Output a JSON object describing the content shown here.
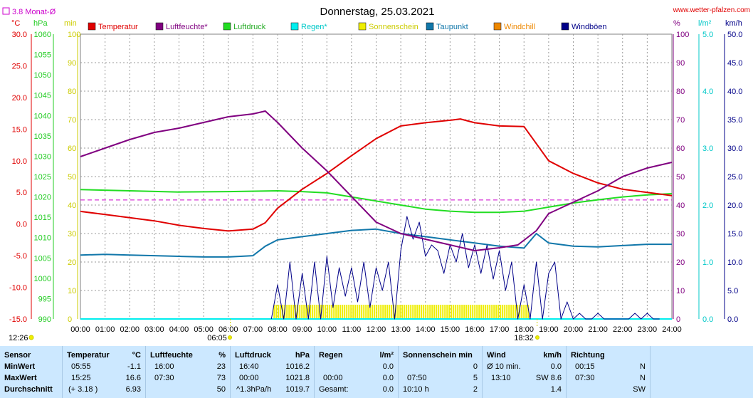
{
  "site": "www.wetter-pfalzen.com",
  "title": "Donnerstag, 25.03.2021",
  "monat_label": "3.8 Monat-Ø",
  "axis_units": {
    "temp": "°C",
    "hpa": "hPa",
    "min": "min",
    "pct": "%",
    "rain": "l/m²",
    "wind": "km/h"
  },
  "axis_ticks": {
    "temp": [
      "30.0",
      "25.0",
      "20.0",
      "15.0",
      "10.0",
      "5.0",
      "0.0",
      "-5.0",
      "-10.0",
      "-15.0"
    ],
    "hpa": [
      "1060",
      "1055",
      "1050",
      "1045",
      "1040",
      "1035",
      "1030",
      "1025",
      "1020",
      "1015",
      "1010",
      "1005",
      "1000",
      "995",
      "990"
    ],
    "min": [
      "100",
      "90",
      "80",
      "70",
      "60",
      "50",
      "40",
      "30",
      "20",
      "10",
      "0"
    ],
    "pct": [
      "100",
      "90",
      "80",
      "70",
      "60",
      "50",
      "40",
      "30",
      "20",
      "10",
      "0"
    ],
    "rain": [
      "5.0",
      "4.0",
      "3.0",
      "2.0",
      "1.0",
      "0.0"
    ],
    "wind": [
      "50.0",
      "45.0",
      "40.0",
      "35.0",
      "30.0",
      "25.0",
      "20.0",
      "15.0",
      "10.0",
      "5.0",
      "0.0"
    ],
    "time": [
      "00:00",
      "01:00",
      "02:00",
      "03:00",
      "04:00",
      "05:00",
      "06:00",
      "07:00",
      "08:00",
      "09:00",
      "10:00",
      "11:00",
      "12:00",
      "13:00",
      "14:00",
      "15:00",
      "16:00",
      "17:00",
      "18:00",
      "19:00",
      "20:00",
      "21:00",
      "22:00",
      "23:00",
      "24:00"
    ]
  },
  "markers": {
    "sunrise": "06:05",
    "sunset": "18:32",
    "daylength": "12:26"
  },
  "colors": {
    "temperatur": "#e00000",
    "luftfeuchte": "#800080",
    "luftdruck": "#22dd22",
    "regen": "#00eeee",
    "sonnenschein": "#eeee00",
    "taupunkt": "#1177aa",
    "windchill": "#ee8800",
    "windboeen": "#000088",
    "monat": "#cc00cc"
  },
  "chart_data": {
    "type": "line",
    "title": "Donnerstag, 25.03.2021",
    "x_range": [
      "00:00",
      "24:00"
    ],
    "grid": true,
    "legend_position": "top",
    "series": [
      {
        "name": "Temperatur",
        "axis": "°C",
        "ylim": [
          -15,
          30
        ],
        "x": [
          "00:00",
          "01:00",
          "02:00",
          "03:00",
          "04:00",
          "05:00",
          "06:00",
          "07:00",
          "07:30",
          "08:00",
          "09:00",
          "10:00",
          "11:00",
          "12:00",
          "13:00",
          "14:00",
          "15:00",
          "15:25",
          "16:00",
          "17:00",
          "18:00",
          "19:00",
          "20:00",
          "21:00",
          "22:00",
          "23:00",
          "24:00"
        ],
        "values": [
          2.0,
          1.5,
          1.0,
          0.5,
          -0.2,
          -0.7,
          -1.1,
          -0.8,
          0.2,
          2.5,
          5.5,
          8.0,
          10.8,
          13.5,
          15.5,
          16.0,
          16.4,
          16.6,
          16.0,
          15.5,
          15.4,
          10.0,
          8.0,
          6.5,
          5.5,
          5.0,
          4.5
        ]
      },
      {
        "name": "Luftfeuchte*",
        "axis": "%",
        "ylim": [
          0,
          100
        ],
        "x": [
          "00:00",
          "01:00",
          "02:00",
          "03:00",
          "04:00",
          "05:00",
          "06:00",
          "07:00",
          "07:30",
          "08:00",
          "09:00",
          "10:00",
          "11:00",
          "12:00",
          "13:00",
          "14:00",
          "15:00",
          "16:00",
          "17:00",
          "17:45",
          "18:30",
          "19:00",
          "20:00",
          "21:00",
          "22:00",
          "23:00",
          "24:00"
        ],
        "values": [
          57,
          60,
          63,
          65.5,
          67,
          69,
          71,
          72,
          73,
          69,
          60,
          52,
          43,
          34,
          30,
          28,
          26,
          24,
          25,
          26,
          31,
          37,
          41,
          45,
          50,
          53,
          55
        ]
      },
      {
        "name": "Luftdruck",
        "axis": "hPa",
        "ylim": [
          990,
          1060
        ],
        "x": [
          "00:00",
          "02:00",
          "04:00",
          "06:00",
          "08:00",
          "09:00",
          "10:00",
          "11:00",
          "12:00",
          "13:00",
          "14:00",
          "15:00",
          "16:00",
          "17:00",
          "18:00",
          "19:00",
          "20:00",
          "21:00",
          "22:00",
          "23:00",
          "24:00"
        ],
        "values": [
          1021.8,
          1021.5,
          1021.2,
          1021.3,
          1021.5,
          1021.3,
          1021.0,
          1020.0,
          1019.0,
          1018.0,
          1017.0,
          1016.5,
          1016.2,
          1016.2,
          1016.5,
          1017.5,
          1018.5,
          1019.3,
          1020.0,
          1020.5,
          1020.8
        ]
      },
      {
        "name": "Regen",
        "axis": "l/m²",
        "ylim": [
          0,
          5
        ],
        "x": [
          "00:00",
          "24:00"
        ],
        "values": [
          0.0,
          0.0
        ]
      },
      {
        "name": "Taupunkt",
        "axis": "°C",
        "ylim": [
          -15,
          30
        ],
        "x": [
          "00:00",
          "01:00",
          "02:00",
          "03:00",
          "04:00",
          "05:00",
          "06:00",
          "07:00",
          "07:30",
          "08:00",
          "09:00",
          "10:00",
          "11:00",
          "12:00",
          "13:00",
          "14:00",
          "15:00",
          "16:00",
          "17:00",
          "18:00",
          "18:30",
          "19:00",
          "20:00",
          "21:00",
          "22:00",
          "23:00",
          "24:00"
        ],
        "values": [
          -4.9,
          -4.8,
          -4.9,
          -5.0,
          -5.1,
          -5.2,
          -5.2,
          -5.0,
          -3.5,
          -2.5,
          -2.0,
          -1.5,
          -1.0,
          -0.8,
          -1.5,
          -2.0,
          -2.5,
          -3.0,
          -3.5,
          -3.8,
          -1.5,
          -3.0,
          -3.5,
          -3.6,
          -3.4,
          -3.2,
          -3.2
        ]
      },
      {
        "name": "Windböen",
        "axis": "km/h",
        "ylim": [
          0,
          50
        ],
        "x": [
          "07:45",
          "08:00",
          "08:15",
          "08:30",
          "08:45",
          "09:00",
          "09:15",
          "09:30",
          "09:45",
          "10:00",
          "10:15",
          "10:30",
          "10:45",
          "11:00",
          "11:15",
          "11:30",
          "11:45",
          "12:00",
          "12:15",
          "12:30",
          "12:45",
          "13:00",
          "13:15",
          "13:30",
          "13:45",
          "14:00",
          "14:15",
          "14:30",
          "14:45",
          "15:00",
          "15:15",
          "15:30",
          "15:45",
          "16:00",
          "16:15",
          "16:30",
          "16:45",
          "17:00",
          "17:15",
          "17:30",
          "17:45",
          "18:00",
          "18:15",
          "18:30",
          "18:45",
          "19:00",
          "19:15",
          "19:30",
          "19:45",
          "20:00",
          "20:15",
          "20:30",
          "20:45",
          "21:00",
          "21:15",
          "21:30",
          "21:45",
          "22:00",
          "22:15",
          "22:30",
          "22:45",
          "23:00",
          "23:15",
          "23:30"
        ],
        "values": [
          0,
          6,
          0,
          10,
          0,
          8,
          0,
          10,
          0,
          11,
          2,
          9,
          4,
          9,
          3,
          10,
          2,
          9,
          5,
          10,
          0,
          12,
          18,
          14,
          17,
          11,
          13,
          12,
          8,
          13,
          10,
          15,
          9,
          13,
          8,
          13,
          7,
          12,
          5,
          10,
          0,
          6,
          0,
          10,
          0,
          8,
          10,
          0,
          3,
          0,
          1,
          0,
          0,
          1,
          0,
          0,
          0,
          0,
          0,
          1,
          0,
          1,
          0,
          0
        ]
      },
      {
        "name": "Sonnenschein",
        "axis": "min",
        "ylim": [
          0,
          100
        ],
        "x": [
          "07:50",
          "18:10"
        ],
        "values": [
          5,
          5
        ]
      }
    ],
    "monat_mittel": {
      "label": "3.8 Monat-Ø",
      "axis": "°C",
      "value": 3.8
    }
  },
  "legend": [
    "Temperatur",
    "Luftfeuchte*",
    "Luftdruck",
    "Regen*",
    "Sonnenschein",
    "Taupunkt",
    "Windchill",
    "Windböen"
  ],
  "table": {
    "row_labels": [
      "Sensor",
      "MinWert",
      "MaxWert",
      "Durchschnitt"
    ],
    "temperatur": {
      "title": "Temperatur",
      "unit": "°C",
      "min_time": "05:55",
      "min": "-1.1",
      "max_time": "15:25",
      "max": "16.6",
      "avg_note": "(+ 3.18 )",
      "avg": "6.93"
    },
    "luftfeuchte": {
      "title": "Luftfeuchte",
      "unit": "%",
      "min_time": "16:00",
      "min": "23",
      "max_time": "07:30",
      "max": "73",
      "avg": "50"
    },
    "luftdruck": {
      "title": "Luftdruck",
      "unit": "hPa",
      "min_time": "16:40",
      "min": "1016.2",
      "max_time": "00:00",
      "max": "1021.8",
      "avg_note": "^1.3hPa/h",
      "avg": "1019.7"
    },
    "regen": {
      "title": "Regen",
      "unit": "l/m²",
      "min": "0.0",
      "max_time": "00:00",
      "max": "0.0",
      "avg_note": "Gesamt:",
      "avg": "0.0"
    },
    "sonne": {
      "title": "Sonnenschein min",
      "max_time": "07:50",
      "min": "0",
      "max": "5",
      "avg_note": "10:10 h",
      "avg": "2"
    },
    "wind": {
      "title": "Wind",
      "unit": "km/h",
      "min_note": "Ø 10 min.",
      "min": "0.0",
      "max_time": "13:10",
      "max": "SW 8.6",
      "avg": "1.4"
    },
    "richtung": {
      "title": "Richtung",
      "min_time": "00:15",
      "min": "N",
      "max_time": "07:30",
      "max": "N",
      "avg": "SW"
    }
  }
}
